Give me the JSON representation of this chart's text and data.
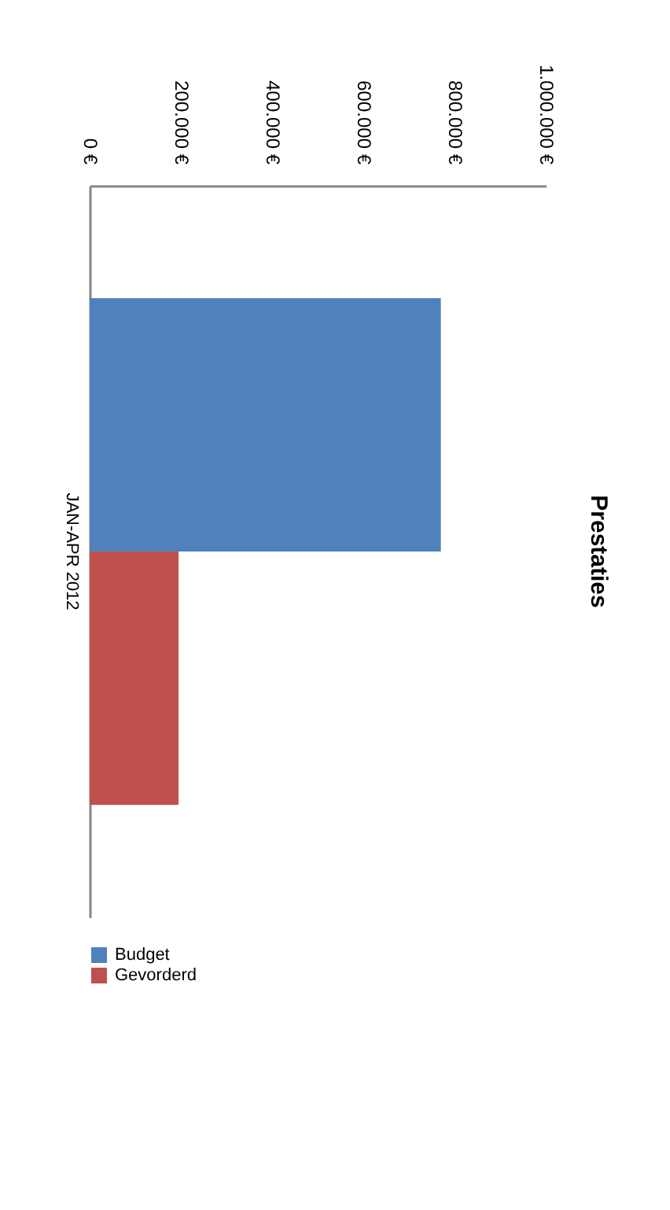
{
  "chart_data": {
    "type": "bar",
    "orientation": "horizontal",
    "title": "Prestaties",
    "categories": [
      "JAN-APR 2012"
    ],
    "series": [
      {
        "name": "Budget",
        "color": "#4f81bd",
        "values": [
          770000
        ]
      },
      {
        "name": "Gevorderd",
        "color": "#c0504d",
        "values": [
          195000
        ]
      }
    ],
    "xlim": [
      0,
      1000000
    ],
    "xticks": [
      {
        "value": 0,
        "label": "0 €"
      },
      {
        "value": 200000,
        "label": "200.000 €"
      },
      {
        "value": 400000,
        "label": "400.000 €"
      },
      {
        "value": 600000,
        "label": "600.000 €"
      },
      {
        "value": 800000,
        "label": "800.000 €"
      },
      {
        "value": 1000000,
        "label": "1.000.000 €"
      }
    ],
    "grid": false,
    "legend": "bottom"
  }
}
